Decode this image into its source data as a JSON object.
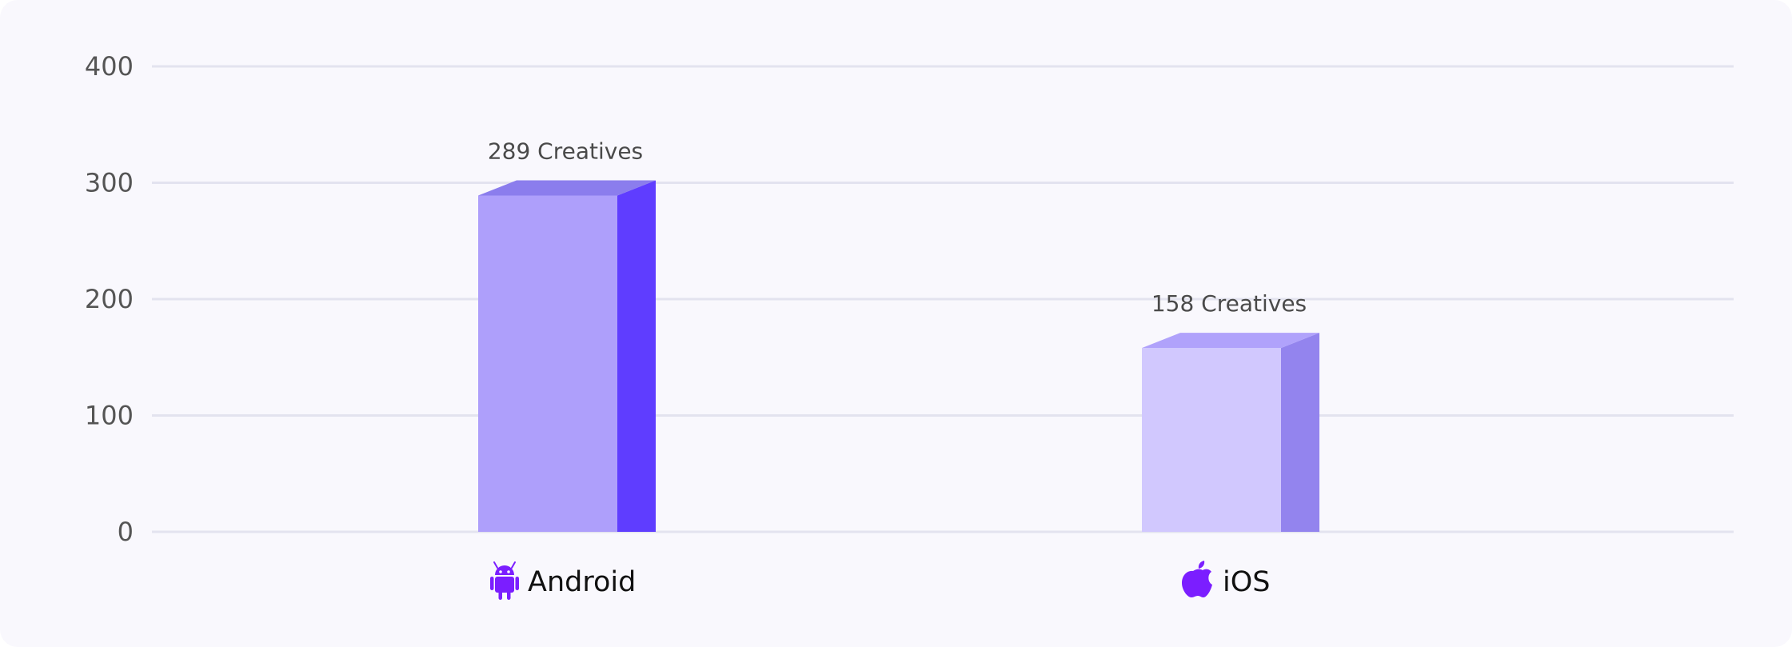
{
  "chart_data": {
    "type": "bar",
    "title": "",
    "xlabel": "",
    "ylabel": "",
    "ylim": [
      0,
      400
    ],
    "y_ticks": [
      0,
      100,
      200,
      300,
      400
    ],
    "grid": true,
    "categories": [
      "Android",
      "iOS"
    ],
    "values": [
      289,
      158
    ],
    "data_labels": [
      "289 Creatives",
      "158 Creatives"
    ],
    "category_icons": [
      "android-icon",
      "apple-icon"
    ],
    "colors": {
      "bars": [
        {
          "front": "#ae9ffb",
          "side": "#5f3dff",
          "top": "#8b7ded"
        },
        {
          "front": "#d1c8fe",
          "side": "#9384ee",
          "top": "#b0a2fb"
        }
      ],
      "icon": "#7b1eff",
      "grid": "#e3e3ef",
      "background": "#f9f8fd"
    }
  }
}
